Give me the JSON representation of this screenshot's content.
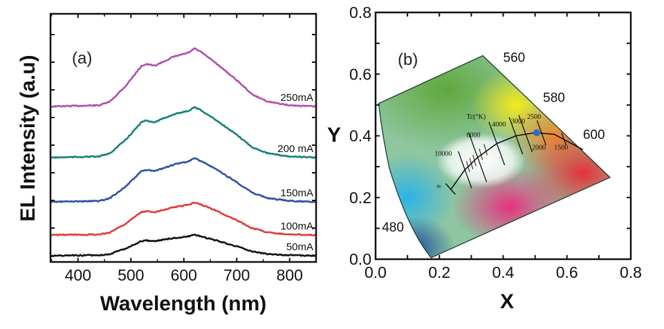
{
  "chart_data": [
    {
      "type": "line",
      "panel_label": "(a)",
      "xlabel": "Wavelength (nm)",
      "ylabel": "EL Intensity (a.u)",
      "xlim": [
        348,
        850
      ],
      "ylim": [
        -0.225,
        8.75
      ],
      "xticks": [
        400,
        500,
        600,
        700,
        800
      ],
      "yticks_unlabeled": [
        1,
        2,
        3,
        4,
        5,
        6,
        7,
        8
      ],
      "grid": false,
      "x": [
        350,
        440,
        460,
        490,
        520,
        530,
        545,
        580,
        610,
        620,
        630,
        660,
        700,
        730,
        760,
        800,
        850
      ],
      "series": [
        {
          "name": "250mA",
          "color": "#b04fae",
          "values": [
            5.4,
            5.44,
            5.57,
            6.14,
            6.87,
            6.93,
            6.87,
            7.19,
            7.35,
            7.5,
            7.4,
            6.98,
            6.35,
            5.82,
            5.57,
            5.44,
            5.4
          ]
        },
        {
          "name": "200 mA",
          "color": "#17807a",
          "values": [
            3.55,
            3.59,
            3.7,
            4.19,
            4.83,
            4.89,
            4.83,
            5.11,
            5.25,
            5.38,
            5.29,
            4.92,
            4.37,
            3.92,
            3.7,
            3.59,
            3.55
          ]
        },
        {
          "name": "150mA",
          "color": "#2f50a5",
          "values": [
            1.95,
            1.98,
            2.08,
            2.5,
            3.06,
            3.1,
            3.06,
            3.29,
            3.42,
            3.53,
            3.45,
            3.14,
            2.66,
            2.27,
            2.08,
            1.98,
            1.95
          ]
        },
        {
          "name": "100mA",
          "color": "#e03b3b",
          "values": [
            0.75,
            0.77,
            0.84,
            1.16,
            1.58,
            1.61,
            1.58,
            1.75,
            1.85,
            1.93,
            1.87,
            1.64,
            1.28,
            0.99,
            0.84,
            0.77,
            0.75
          ]
        },
        {
          "name": "50mA",
          "color": "#111111",
          "values": [
            0,
            0.02,
            0.06,
            0.26,
            0.53,
            0.55,
            0.53,
            0.64,
            0.7,
            0.75,
            0.71,
            0.56,
            0.34,
            0.15,
            0.06,
            0.02,
            0
          ]
        }
      ]
    },
    {
      "type": "scatter",
      "panel_label": "(b)",
      "xlabel": "X",
      "ylabel": "Y",
      "xlim": [
        0,
        0.8
      ],
      "ylim": [
        0,
        0.8
      ],
      "xticks": [
        "0.0",
        "0.2",
        "0.4",
        "0.6",
        "0.8"
      ],
      "yticks": [
        "0.0",
        "0.2",
        "0.4",
        "0.6",
        "0.8"
      ],
      "grid": false,
      "gamut_boundary": [
        [
          0.01,
          0.505
        ],
        [
          0.336,
          0.66
        ],
        [
          0.735,
          0.265
        ],
        [
          0.174,
          0.005
        ],
        [
          0.102,
          0.096
        ],
        [
          0.043,
          0.296
        ]
      ],
      "wavelength_labels": [
        {
          "text": "560",
          "x": 0.4,
          "y": 0.64
        },
        {
          "text": "580",
          "x": 0.525,
          "y": 0.51
        },
        {
          "text": "600",
          "x": 0.65,
          "y": 0.39
        },
        {
          "text": "480",
          "x": 0.02,
          "y": 0.09
        }
      ],
      "planckian_locus": [
        [
          0.235,
          0.225
        ],
        [
          0.28,
          0.29
        ],
        [
          0.32,
          0.33
        ],
        [
          0.38,
          0.375
        ],
        [
          0.44,
          0.4
        ],
        [
          0.5,
          0.41
        ],
        [
          0.56,
          0.405
        ],
        [
          0.65,
          0.355
        ]
      ],
      "locus_title": "Tc(°K)",
      "temperature_labels": [
        {
          "text": "∞",
          "x": 0.19,
          "y": 0.23
        },
        {
          "text": "10000",
          "x": 0.185,
          "y": 0.335
        },
        {
          "text": "6000",
          "x": 0.285,
          "y": 0.395
        },
        {
          "text": "4000",
          "x": 0.365,
          "y": 0.43
        },
        {
          "text": "3000",
          "x": 0.425,
          "y": 0.44
        },
        {
          "text": "2500",
          "x": 0.475,
          "y": 0.455
        },
        {
          "text": "2000",
          "x": 0.49,
          "y": 0.355
        },
        {
          "text": "1500",
          "x": 0.56,
          "y": 0.355
        }
      ],
      "points": [
        {
          "x": 0.505,
          "y": 0.41,
          "color": "#2b6fc4"
        }
      ]
    }
  ]
}
